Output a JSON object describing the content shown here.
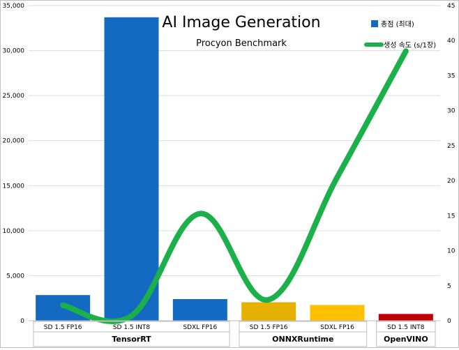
{
  "chart_data": {
    "type": "bar",
    "title": "AI Image Generation",
    "subtitle": "Procyon Benchmark",
    "categories": [
      "SD 1.5 FP16",
      "SD 1.5 INT8",
      "SDXL FP16",
      "SD 1.5 FP16",
      "SDXL FP16",
      "SD 1.5 INT8"
    ],
    "groups": [
      {
        "label": "TensorRT",
        "start": 0,
        "end": 2
      },
      {
        "label": "ONNXRuntime",
        "start": 3,
        "end": 4
      },
      {
        "label": "OpenVINO",
        "start": 5,
        "end": 5
      }
    ],
    "series": [
      {
        "name": "총점 (최대)",
        "type": "bar",
        "axis": "left",
        "values": [
          2850,
          33700,
          2400,
          2050,
          1750,
          750
        ],
        "colors": [
          "#1469c3",
          "#1469c3",
          "#1469c3",
          "#e6b000",
          "#ffc000",
          "#c00000"
        ]
      },
      {
        "name": "생성 속도 (s/1장)",
        "type": "line",
        "axis": "right",
        "color": "#1bb04a",
        "values": [
          2.2,
          0.7,
          15.3,
          3.0,
          20.5,
          38.5
        ]
      }
    ],
    "y_left": {
      "min": 0,
      "max": 35000,
      "ticks": [
        "0",
        "5,000",
        "10,000",
        "15,000",
        "20,000",
        "25,000",
        "30,000",
        "35,000"
      ]
    },
    "y_right": {
      "min": 0,
      "max": 45,
      "ticks": [
        "0",
        "5",
        "10",
        "15",
        "20",
        "25",
        "30",
        "35",
        "40",
        "45"
      ]
    },
    "grid": true,
    "legend_position": "top-right"
  }
}
